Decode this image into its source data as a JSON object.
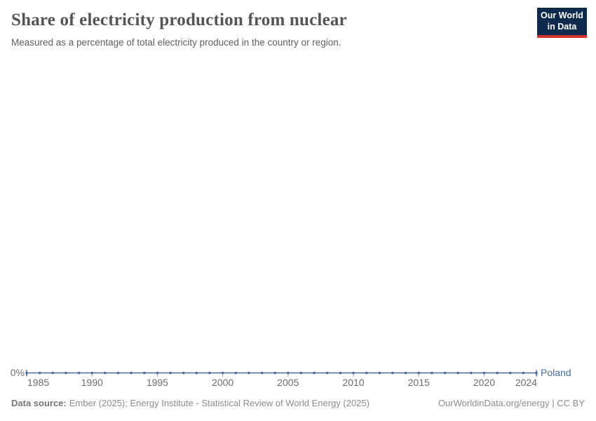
{
  "header": {
    "title": "Share of electricity production from nuclear",
    "subtitle": "Measured as a percentage of total electricity produced in the country or region."
  },
  "logo": {
    "line1": "Our World",
    "line2": "in Data",
    "bg_color": "#0e2a4c",
    "bar_color": "#d2352b"
  },
  "chart_data": {
    "type": "line",
    "title": "Share of electricity production from nuclear",
    "xlabel": "",
    "ylabel": "",
    "xlim": [
      1985,
      2024
    ],
    "ylim": [
      0,
      0
    ],
    "grid": false,
    "legend_position": "end-of-line entity label",
    "x_ticks": [
      1985,
      1990,
      1995,
      2000,
      2005,
      2010,
      2015,
      2020,
      2024
    ],
    "y_tick_labels": [
      "0%"
    ],
    "series": [
      {
        "name": "Poland",
        "color": "#4c6a9c",
        "x": [
          1985,
          1986,
          1987,
          1988,
          1989,
          1990,
          1991,
          1992,
          1993,
          1994,
          1995,
          1996,
          1997,
          1998,
          1999,
          2000,
          2001,
          2002,
          2003,
          2004,
          2005,
          2006,
          2007,
          2008,
          2009,
          2010,
          2011,
          2012,
          2013,
          2014,
          2015,
          2016,
          2017,
          2018,
          2019,
          2020,
          2021,
          2022,
          2023,
          2024
        ],
        "values": [
          0,
          0,
          0,
          0,
          0,
          0,
          0,
          0,
          0,
          0,
          0,
          0,
          0,
          0,
          0,
          0,
          0,
          0,
          0,
          0,
          0,
          0,
          0,
          0,
          0,
          0,
          0,
          0,
          0,
          0,
          0,
          0,
          0,
          0,
          0,
          0,
          0,
          0,
          0,
          0
        ]
      }
    ],
    "entity_label": "Poland",
    "axis_colors": {
      "tick_mark": "#a5a5a5",
      "tick_label": "#6e6e6e"
    }
  },
  "footer": {
    "source_label": "Data source:",
    "source_text": "Ember (2025); Energy Institute - Statistical Review of World Energy (2025)",
    "right_text": "OurWorldinData.org/energy | CC BY"
  }
}
